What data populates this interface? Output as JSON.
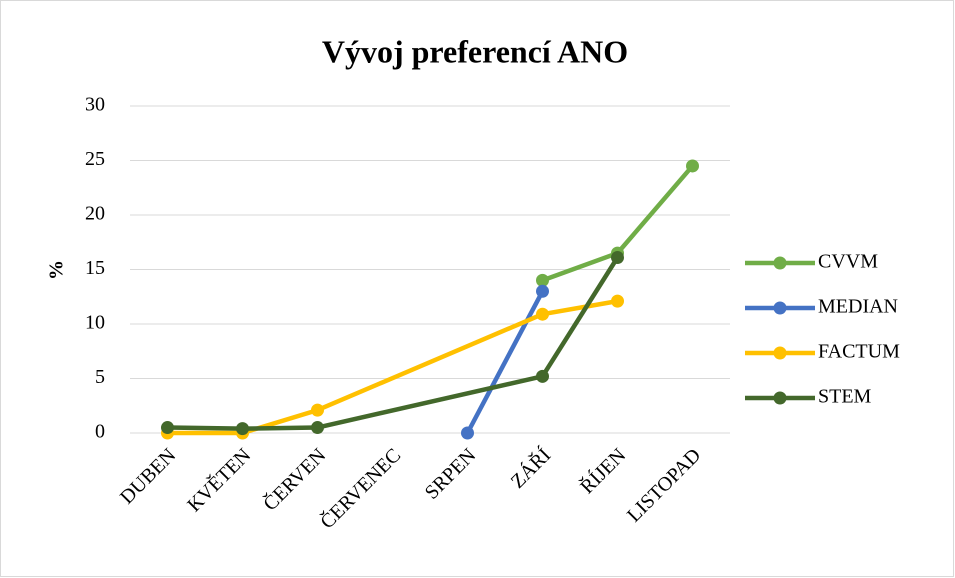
{
  "chart_data": {
    "type": "line",
    "title": "Vývoj preferencí ANO",
    "ylabel": "%",
    "categories": [
      "DUBEN",
      "KVĚTEN",
      "ČERVEN",
      "ČERVENEC",
      "SRPEN",
      "ZÁŘÍ",
      "ŘÍJEN",
      "LISTOPAD"
    ],
    "series": [
      {
        "name": "CVVM",
        "color": "#70ad47",
        "values": [
          null,
          null,
          null,
          null,
          null,
          14,
          16.5,
          24.5
        ]
      },
      {
        "name": "MEDIAN",
        "color": "#4472c4",
        "values": [
          null,
          null,
          null,
          null,
          0,
          13,
          null,
          null
        ]
      },
      {
        "name": "FACTUM",
        "color": "#ffc000",
        "values": [
          0,
          0,
          2.1,
          null,
          null,
          10.9,
          12.1,
          null
        ]
      },
      {
        "name": "STEM",
        "color": "#43682b",
        "values": [
          0.5,
          0.4,
          0.5,
          null,
          null,
          5.2,
          16.1,
          null
        ]
      }
    ],
    "ylim": [
      0,
      30
    ],
    "yticks": [
      0,
      5,
      10,
      15,
      20,
      25,
      30
    ],
    "grid": true,
    "span_gaps": true,
    "legend": "right"
  }
}
